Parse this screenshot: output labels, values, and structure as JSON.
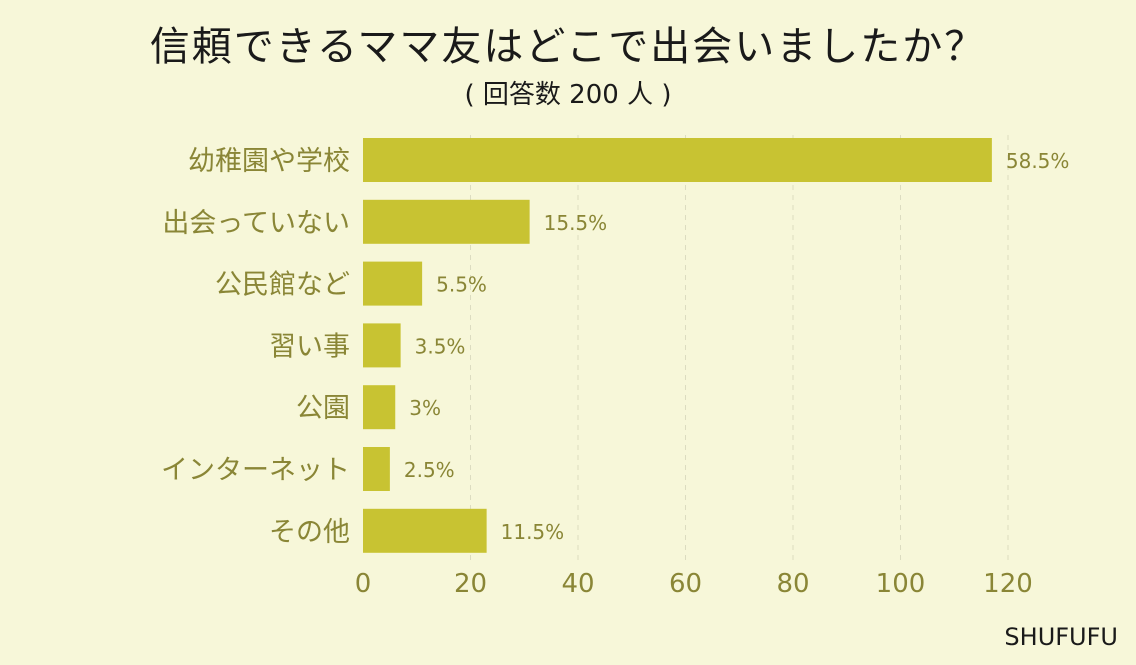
{
  "chart_data": {
    "type": "bar",
    "orientation": "horizontal",
    "title": "信頼できるママ友はどこで出会いましたか？",
    "subtitle": "( 回答数 200 人 )",
    "categories": [
      "幼稚園や学校",
      "出会っていない",
      "公民館など",
      "習い事",
      "公園",
      "インターネット",
      "その他"
    ],
    "values": [
      117,
      31,
      11,
      7,
      6,
      5,
      23
    ],
    "value_labels": [
      "58.5%",
      "15.5%",
      "5.5%",
      "3.5%",
      "3%",
      "2.5%",
      "11.5%"
    ],
    "xlim": [
      0,
      120
    ],
    "xticks": [
      "0",
      "20",
      "40",
      "60",
      "80",
      "100",
      "120"
    ],
    "grid": "vertical-dashed",
    "bar_color": "#c8c332"
  },
  "credit": "SHUFUFU"
}
